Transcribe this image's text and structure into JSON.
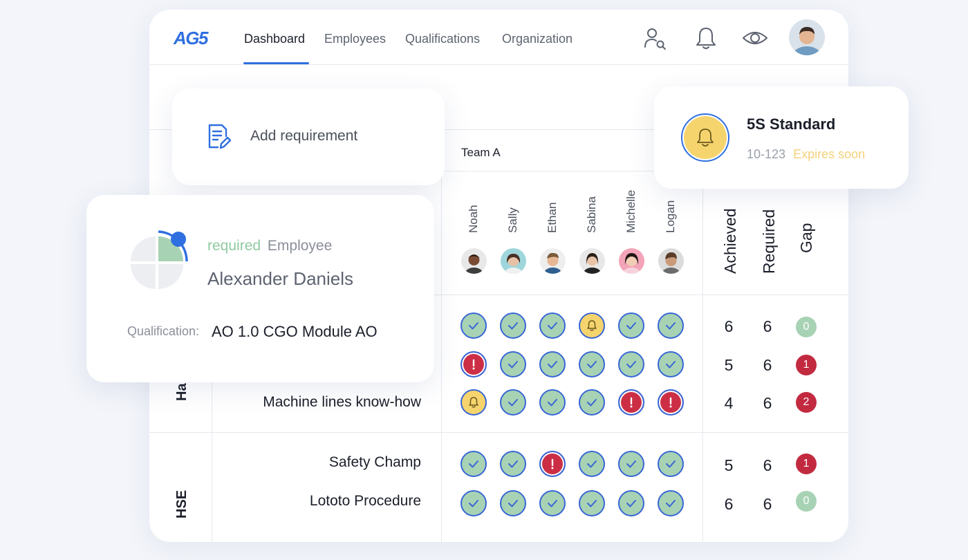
{
  "app": {
    "logo": "AG5"
  },
  "nav": {
    "tabs": [
      {
        "label": "Dashboard",
        "active": true
      },
      {
        "label": "Employees",
        "active": false
      },
      {
        "label": "Qualifications",
        "active": false
      },
      {
        "label": "Organization",
        "active": false
      }
    ]
  },
  "toolbar": {
    "icons": [
      "user-search-icon",
      "bell-icon",
      "eye-icon",
      "user-avatar"
    ]
  },
  "matrix": {
    "team": "Team A",
    "employees": [
      "Noah",
      "Sally",
      "Ethan",
      "Sabina",
      "Michelle",
      "Logan"
    ],
    "columns": {
      "achieved": "Achieved",
      "required": "Required",
      "gap": "Gap"
    },
    "groups": [
      {
        "label": "Ha",
        "rows": [
          {
            "label": "",
            "cells": [
              "ok",
              "ok",
              "ok",
              "warn",
              "ok",
              "ok"
            ],
            "achieved": "6",
            "required": "6",
            "gap": "0"
          },
          {
            "label": "",
            "cells": [
              "bad",
              "ok",
              "ok",
              "ok",
              "ok",
              "ok"
            ],
            "achieved": "5",
            "required": "6",
            "gap": "1"
          },
          {
            "label": "Machine lines know-how",
            "cells": [
              "warn",
              "ok",
              "ok",
              "ok",
              "bad",
              "bad"
            ],
            "achieved": "4",
            "required": "6",
            "gap": "2"
          }
        ]
      },
      {
        "label": "HSE",
        "rows": [
          {
            "label": "Safety Champ",
            "cells": [
              "ok",
              "ok",
              "bad",
              "ok",
              "ok",
              "ok"
            ],
            "achieved": "5",
            "required": "6",
            "gap": "1"
          },
          {
            "label": "Lototo Procedure",
            "cells": [
              "ok",
              "ok",
              "ok",
              "ok",
              "ok",
              "ok"
            ],
            "achieved": "6",
            "required": "6",
            "gap": "0"
          }
        ]
      }
    ]
  },
  "add_card": {
    "label": "Add requirement",
    "icon": "document-edit-icon"
  },
  "employee_card": {
    "status": "required",
    "role": "Employee",
    "name": "Alexander Daniels",
    "qualification_label": "Qualification:",
    "qualification_value": "AO 1.0 CGO Module AO",
    "progress_quadrants_filled": 1
  },
  "standard_card": {
    "title": "5S Standard",
    "code": "10-123",
    "status": "Expires soon",
    "icon": "bell-icon"
  },
  "colors": {
    "accent": "#2f6fe0",
    "ok": "#a8d2b4",
    "warn": "#f6d46d",
    "bad": "#cc2f45",
    "expires": "#f3d27a",
    "required": "#8fcba0"
  }
}
